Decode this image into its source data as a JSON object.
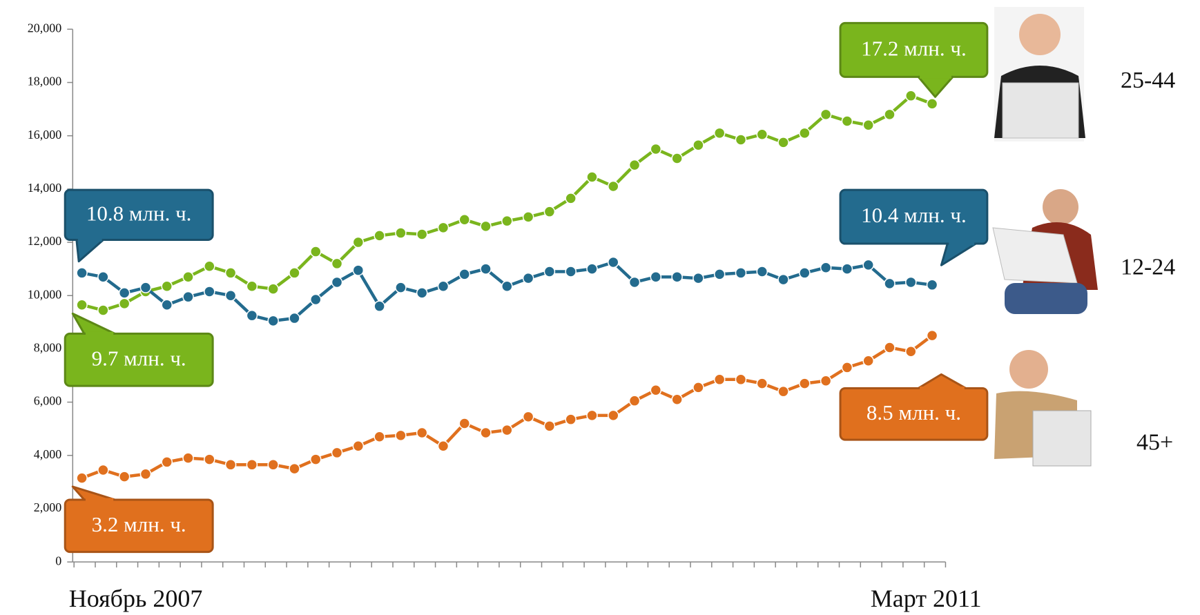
{
  "chart_data": {
    "type": "line",
    "categories": [
      "Ноябрь 2007",
      null,
      null,
      null,
      null,
      null,
      null,
      null,
      null,
      null,
      null,
      null,
      null,
      null,
      null,
      null,
      null,
      null,
      null,
      null,
      null,
      null,
      null,
      null,
      null,
      null,
      null,
      null,
      null,
      null,
      null,
      null,
      null,
      null,
      null,
      null,
      null,
      null,
      null,
      null,
      "Март 2011"
    ],
    "ylim": [
      0,
      20000
    ],
    "yticks": [
      0,
      {
        "value": 2000,
        "label": "2,000"
      },
      {
        "value": 4000,
        "label": "4,000"
      },
      {
        "value": 6000,
        "label": "6,000"
      },
      {
        "value": 8000,
        "label": "8,000"
      },
      {
        "value": 10000,
        "label": "10,000"
      },
      {
        "value": 12000,
        "label": "12,000"
      },
      {
        "value": 14000,
        "label": "14,000"
      },
      {
        "value": 16000,
        "label": "16,000"
      },
      {
        "value": 18000,
        "label": "18,000"
      },
      {
        "value": 20000,
        "label": "20,000"
      }
    ],
    "grid": false,
    "series": [
      {
        "name": "25-44",
        "color": "#7ab51d",
        "start_label": "9.7 млн. ч.",
        "end_label": "17.2 млн. ч.",
        "values": [
          9650,
          9450,
          9700,
          10150,
          10350,
          10700,
          11100,
          10850,
          10350,
          10250,
          10850,
          11650,
          11200,
          12000,
          12250,
          12350,
          12300,
          12550,
          12850,
          12600,
          12800,
          12950,
          13150,
          13650,
          14450,
          14100,
          14900,
          15500,
          15150,
          15650,
          16100,
          15850,
          16050,
          15750,
          16100,
          16800,
          16550,
          16400,
          16800,
          17500,
          17200
        ]
      },
      {
        "name": "12-24",
        "color": "#236b8e",
        "start_label": "10.8 млн. ч.",
        "end_label": "10.4 млн. ч.",
        "values": [
          10850,
          10700,
          10100,
          10300,
          9650,
          9950,
          10150,
          10000,
          9250,
          9050,
          9150,
          9850,
          10500,
          10950,
          9600,
          10300,
          10100,
          10350,
          10800,
          11000,
          10350,
          10650,
          10900,
          10900,
          11000,
          11250,
          10500,
          10700,
          10700,
          10650,
          10800,
          10850,
          10900,
          10600,
          10850,
          11050,
          11000,
          11150,
          10450,
          10500,
          10400
        ]
      },
      {
        "name": "45+",
        "color": "#e0701e",
        "start_label": "3.2 млн. ч.",
        "end_label": "8.5 млн. ч.",
        "values": [
          3150,
          3450,
          3200,
          3300,
          3750,
          3900,
          3850,
          3650,
          3650,
          3650,
          3500,
          3850,
          4100,
          4350,
          4700,
          4750,
          4850,
          4350,
          5200,
          4850,
          4950,
          5450,
          5100,
          5350,
          5500,
          5500,
          6050,
          6450,
          6100,
          6550,
          6850,
          6850,
          6700,
          6400,
          6700,
          6800,
          7300,
          7550,
          8050,
          7900,
          8500
        ]
      }
    ]
  }
}
